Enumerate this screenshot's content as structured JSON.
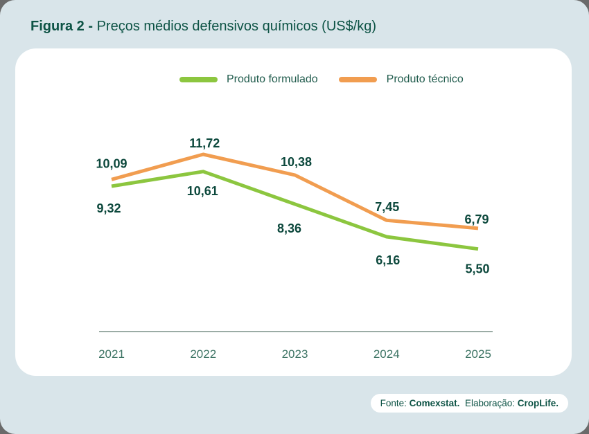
{
  "title": {
    "prefix": "Figura 2 - ",
    "text": "Preços médios defensivos químicos (US$/kg)"
  },
  "footer": {
    "fonte_label": "Fonte: ",
    "fonte_value": "Comexstat.",
    "elaboracao_label": "  Elaboração: ",
    "elaboracao_value": "CropLife."
  },
  "colors": {
    "page_bg": "#d9e5ea",
    "card_bg": "#ffffff",
    "title": "#0d5345",
    "data_label": "#0c483c",
    "axis": "#37584b",
    "year_label": "#3d7464",
    "legend_text": "#215c4d",
    "footer_text": "#0d5345",
    "frame": "#6a6a6a"
  },
  "chart_data": {
    "type": "line",
    "title": "Preços médios defensivos químicos (US$/kg)",
    "x": [
      "2021",
      "2022",
      "2023",
      "2024",
      "2025"
    ],
    "series": [
      {
        "name": "Produto formulado",
        "color": "#8cc63f",
        "values": [
          9.32,
          10.61,
          8.36,
          6.16,
          5.5
        ],
        "label_position": "below"
      },
      {
        "name": "Produto técnico",
        "color": "#f19d50",
        "values": [
          10.09,
          11.72,
          10.38,
          7.45,
          6.79
        ],
        "label_position": "above"
      }
    ],
    "decimal_separator": ",",
    "grid": false,
    "legend_position": "top",
    "ylim": [
      4.0,
      12.5
    ]
  }
}
